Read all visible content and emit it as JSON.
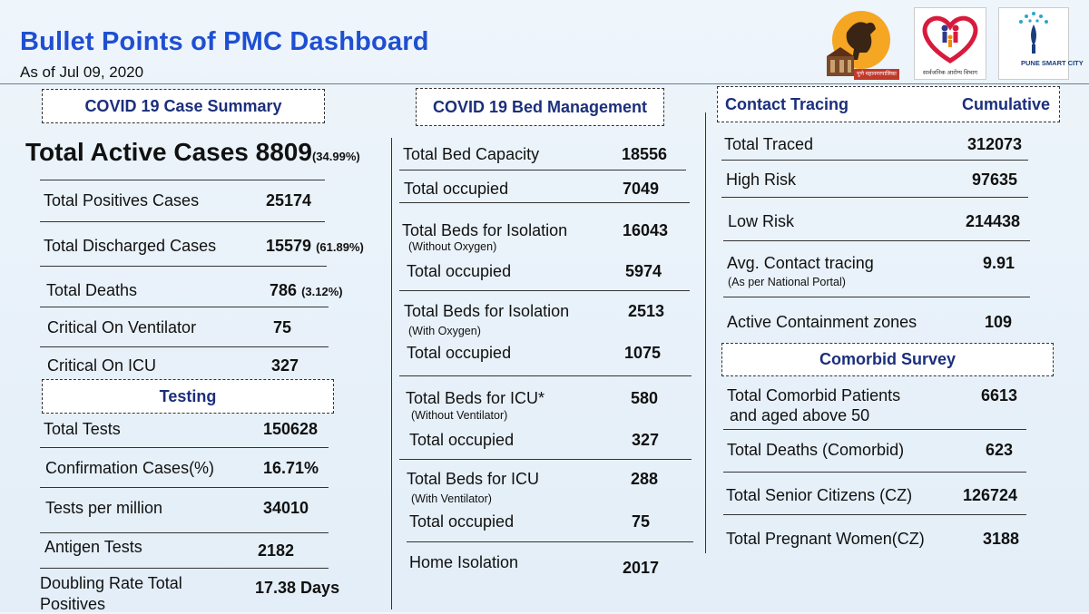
{
  "header": {
    "title": "Bullet Points of PMC Dashboard",
    "as_of": "As of Jul 09, 2020"
  },
  "logos": {
    "pmc": {
      "caption": "पुणे महानगरपालिका"
    },
    "health": {
      "caption": "सार्वजनिक आरोग्य विभाग"
    },
    "smartcity": {
      "caption": "PUNE SMART CITY"
    }
  },
  "case_summary": {
    "heading": "COVID 19 Case Summary",
    "active_label": "Total Active Cases",
    "active_value": "8809",
    "active_pct": "(34.99%)",
    "rows": [
      {
        "label": "Total Positives Cases",
        "value": "25174",
        "extra": ""
      },
      {
        "label": "Total Discharged Cases",
        "value": "15579",
        "extra": "(61.89%)"
      },
      {
        "label": "Total Deaths",
        "value": "786",
        "extra": "(3.12%)"
      },
      {
        "label": "Critical On Ventilator",
        "value": "75",
        "extra": ""
      },
      {
        "label": "Critical On ICU",
        "value": "327",
        "extra": ""
      }
    ]
  },
  "testing": {
    "heading": "Testing",
    "rows": [
      {
        "label": "Total Tests",
        "value": "150628"
      },
      {
        "label": "Confirmation Cases(%)",
        "value": "16.71%"
      },
      {
        "label": "Tests per million",
        "value": "34010"
      },
      {
        "label": "Antigen Tests",
        "value": "2182"
      },
      {
        "label": "Doubling Rate Total",
        "label2": "Positives",
        "value": "17.38 Days"
      }
    ]
  },
  "bed_management": {
    "heading": "COVID 19 Bed Management",
    "rows": [
      {
        "label": "Total Bed Capacity",
        "value": "18556"
      },
      {
        "label": "Total occupied",
        "value": "7049"
      },
      {
        "label": "Total Beds for Isolation",
        "note": "(Without Oxygen)",
        "value": "16043"
      },
      {
        "label": "Total occupied",
        "value": "5974"
      },
      {
        "label": "Total Beds for Isolation",
        "note": "(With Oxygen)",
        "value": "2513"
      },
      {
        "label": "Total occupied",
        "value": "1075"
      },
      {
        "label": "Total Beds for ICU*",
        "note": "(Without Ventilator)",
        "value": "580"
      },
      {
        "label": "Total occupied",
        "value": "327"
      },
      {
        "label": "Total Beds for ICU",
        "note": "(With Ventilator)",
        "value": "288"
      },
      {
        "label": "Total occupied",
        "value": "75"
      },
      {
        "label": "Home Isolation",
        "value": "2017"
      }
    ]
  },
  "contact_tracing": {
    "heading": "Contact Tracing",
    "heading_right": "Cumulative",
    "rows": [
      {
        "label": "Total Traced",
        "value": "312073"
      },
      {
        "label": "High Risk",
        "value": "97635"
      },
      {
        "label": "Low Risk",
        "value": "214438"
      },
      {
        "label": "Avg. Contact tracing",
        "note": "(As per National Portal)",
        "value": "9.91"
      },
      {
        "label": "Active Containment zones",
        "value": "109"
      }
    ]
  },
  "comorbid": {
    "heading": "Comorbid Survey",
    "rows": [
      {
        "label": "Total Comorbid Patients",
        "label2": "and aged above 50",
        "value": "6613"
      },
      {
        "label": "Total Deaths (Comorbid)",
        "value": "623"
      },
      {
        "label": "Total Senior Citizens (CZ)",
        "value": "126724"
      },
      {
        "label": "Total Pregnant Women(CZ)",
        "value": "3188"
      }
    ]
  }
}
